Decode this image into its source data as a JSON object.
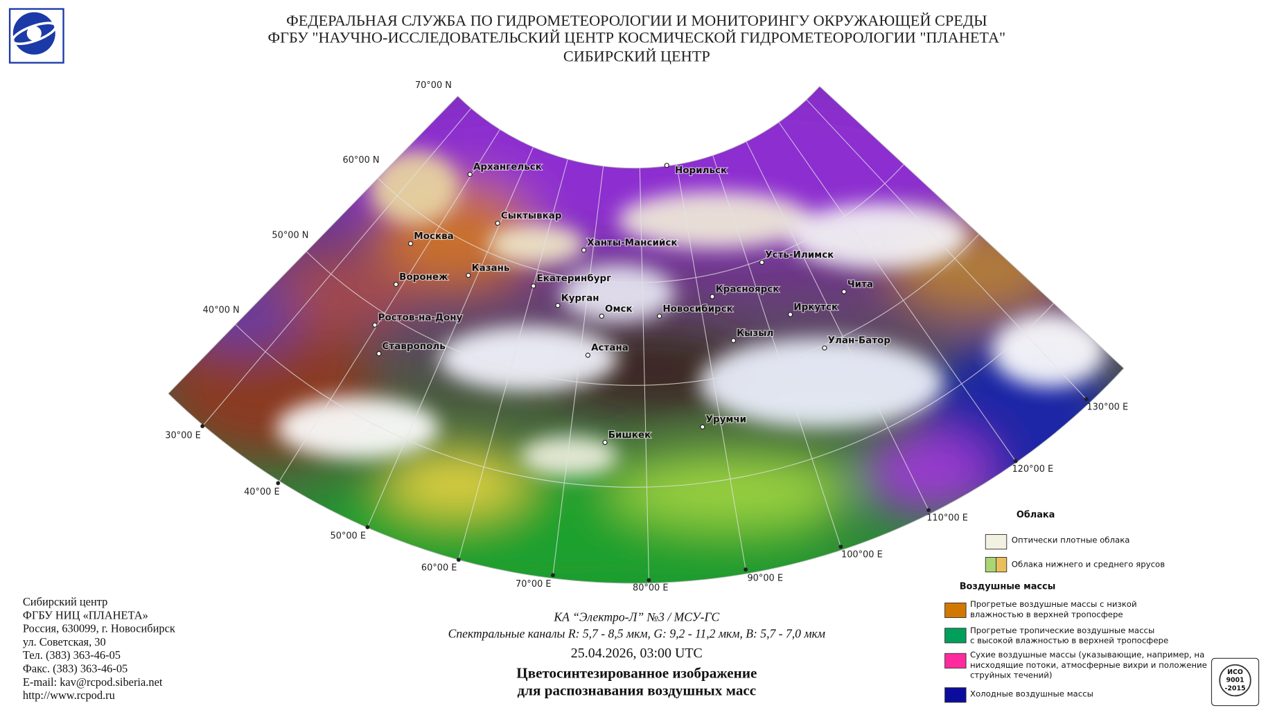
{
  "header": {
    "lines": [
      "ФЕДЕРАЛЬНАЯ СЛУЖБА ПО ГИДРОМЕТЕОРОЛОГИИ И МОНИТОРИНГУ ОКРУЖАЮЩЕЙ СРЕДЫ",
      "ФГБУ \"НАУЧНО-ИССЛЕДОВАТЕЛЬСКИЙ ЦЕНТР КОСМИЧЕСКОЙ ГИДРОМЕТЕОРОЛОГИИ \"ПЛАНЕТА\"",
      "СИБИРСКИЙ ЦЕНТР"
    ]
  },
  "map": {
    "lat_labels": [
      "70°00 N",
      "60°00 N",
      "50°00 N",
      "40°00 N"
    ],
    "lon_labels": [
      "30°00 E",
      "40°00 E",
      "50°00 E",
      "60°00 E",
      "70°00 E",
      "80°00 E",
      "90°00 E",
      "100°00 E",
      "110°00 E",
      "120°00 E",
      "130°00 E"
    ],
    "cities": [
      "Архангельск",
      "Сыктывкар",
      "Москва",
      "Казань",
      "Воронеж",
      "Ростов-на-Дону",
      "Ставрополь",
      "Екатеринбург",
      "Ханты-Мансийск",
      "Курган",
      "Омск",
      "Астана",
      "Новосибирск",
      "Норильск",
      "Красноярск",
      "Усть-Илимск",
      "Иркутск",
      "Кызыл",
      "Чита",
      "Улан-Батор",
      "Урумчи",
      "Бишкек"
    ]
  },
  "caption": {
    "satellite": "КА “Электро-Л” №3 / МСУ-ГС",
    "channels": "Спектральные каналы R: 5,7 - 8,5 мкм, G: 9,2 - 11,2 мкм, B: 5,7 - 7,0 мкм",
    "datetime": "25.04.2026, 03:00 UTC",
    "title_lines": [
      "Цветосинтезированное изображение",
      "для распознавания воздушных масс"
    ]
  },
  "legend": {
    "clouds_title": "Облака",
    "clouds": [
      {
        "lines": [
          "Оптически плотные облака"
        ],
        "colors": [
          "#f3f1e2"
        ]
      },
      {
        "lines": [
          "Облака нижнего и среднего ярусов"
        ],
        "colors": [
          "#a9d672",
          "#e9bf5c"
        ]
      }
    ],
    "air_title": "Воздушные массы",
    "air": [
      {
        "lines": [
          "Прогретые воздушные массы с низкой",
          "влажностью в верхней тропосфере"
        ],
        "colors": [
          "#d27800"
        ]
      },
      {
        "lines": [
          "Прогретые тропичеcкие воздушные массы",
          "с высокой влажностью в верхней тропосфере"
        ],
        "colors": [
          "#00a05a"
        ]
      },
      {
        "lines": [
          "Сухие воздушные массы (указывающие, например, на",
          "нисходящие потоки, атмосферные вихри и положение",
          "струйных течений)"
        ],
        "colors": [
          "#ff2a9e"
        ]
      },
      {
        "lines": [
          "Холодные воздушные массы"
        ],
        "colors": [
          "#0c0c9c"
        ]
      }
    ]
  },
  "address": {
    "lines": [
      "Сибирский центр",
      "ФГБУ НИЦ «ПЛАНЕТА»",
      "Россия, 630099, г. Новосибирск",
      "ул. Советская, 30",
      "Тел. (383) 363-46-05",
      "Факс. (383) 363-46-05",
      "E-mail: kav@rcpod.siberia.net",
      "http://www.rcpod.ru"
    ]
  },
  "iso": {
    "lines": [
      "ИСО",
      "9001",
      "-2015"
    ]
  }
}
